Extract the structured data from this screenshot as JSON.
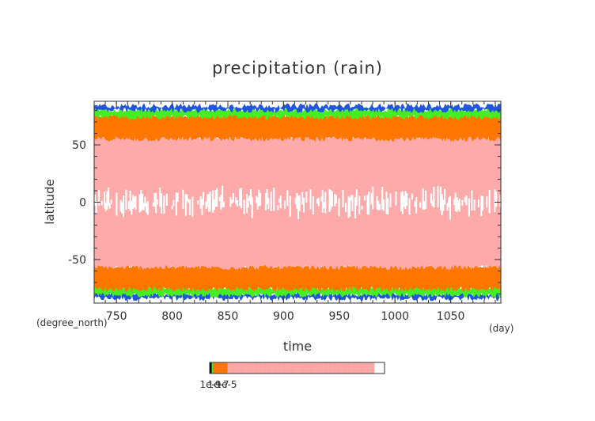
{
  "chart_data": {
    "type": "heatmap",
    "title": "precipitation (rain)",
    "xlabel": "time",
    "ylabel": "latitude",
    "x_units": "(day)",
    "y_units": "(degree_north)",
    "xlim": [
      730,
      1095
    ],
    "ylim": [
      -88,
      88
    ],
    "x_ticks": [
      750,
      800,
      850,
      900,
      950,
      1000,
      1050
    ],
    "y_ticks": [
      -50,
      0,
      50
    ],
    "bands": [
      {
        "name": "rim-blue",
        "lat_min": -84,
        "lat_max": -80,
        "color": "#2255dd"
      },
      {
        "name": "green-south",
        "lat_min": -81,
        "lat_max": -74,
        "color": "#44ee22"
      },
      {
        "name": "orange-south",
        "lat_min": -76,
        "lat_max": -55,
        "color": "#ff7700"
      },
      {
        "name": "pink",
        "lat_min": -57,
        "lat_max": 57,
        "color": "#ffaaaa"
      },
      {
        "name": "orange-north",
        "lat_min": 55,
        "lat_max": 76,
        "color": "#ff7700"
      },
      {
        "name": "green-north",
        "lat_min": 74,
        "lat_max": 81,
        "color": "#44ee22"
      },
      {
        "name": "rim-blue-north",
        "lat_min": 80,
        "lat_max": 84,
        "color": "#2255dd"
      }
    ],
    "equatorial_gap": {
      "lat_min": -15,
      "lat_max": 15,
      "color": "#ffffff"
    },
    "colorbar": {
      "segments": [
        {
          "color": "#000000",
          "fraction": 0.012
        },
        {
          "color": "#44ee22",
          "fraction": 0.006
        },
        {
          "color": "#ff7700",
          "fraction": 0.085
        },
        {
          "color": "#ffaaaa",
          "fraction": 0.84
        },
        {
          "color": "#ffffff",
          "fraction": 0.057
        }
      ],
      "labels": [
        "1e-9",
        "1e-7",
        "1e-5"
      ]
    }
  }
}
